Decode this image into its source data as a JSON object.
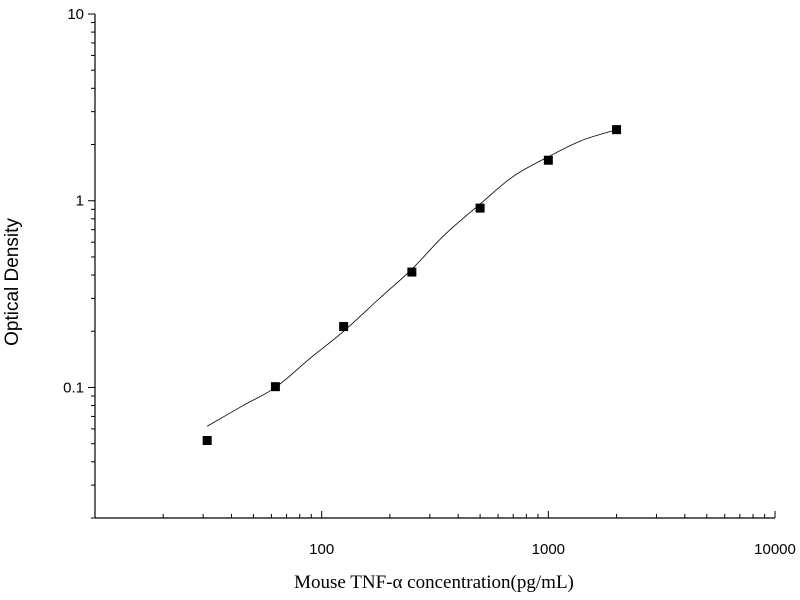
{
  "chart_data": {
    "type": "scatter",
    "title": "",
    "xlabel": "Mouse TNF-α  concentration(pg/mL)",
    "ylabel": "Optical Density",
    "xscale": "log",
    "yscale": "log",
    "xlim": [
      10,
      10000
    ],
    "ylim": [
      0.02,
      10
    ],
    "x_ticks": [
      100,
      1000,
      10000
    ],
    "x_tick_labels": [
      "100",
      "1000",
      "10000"
    ],
    "y_ticks": [
      0.1,
      1,
      10
    ],
    "y_tick_labels": [
      "0.1",
      "1",
      "10"
    ],
    "grid": false,
    "legend": "none",
    "series": [
      {
        "style": "square-markers",
        "color": "#000000",
        "x": [
          31.25,
          62.5,
          125,
          250,
          500,
          1000,
          2000
        ],
        "y": [
          0.052,
          0.101,
          0.212,
          0.415,
          0.913,
          1.648,
          2.403
        ]
      },
      {
        "style": "fitted-curve",
        "color": "#000000",
        "x": [
          31.25,
          45,
          62.5,
          90,
          125,
          180,
          250,
          350,
          500,
          700,
          1000,
          1400,
          2000
        ],
        "y": [
          0.062,
          0.08,
          0.1,
          0.145,
          0.2,
          0.3,
          0.43,
          0.66,
          0.96,
          1.35,
          1.72,
          2.1,
          2.4
        ]
      }
    ]
  }
}
